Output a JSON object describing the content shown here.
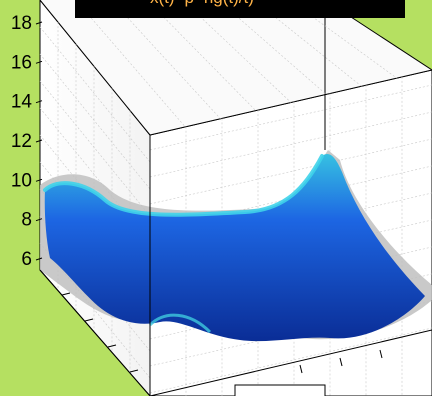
{
  "window": {
    "background_color": "#b5e061"
  },
  "title": {
    "text": "x(t)=p=ng(t)/t)"
  },
  "chart_data": {
    "type": "surface",
    "view": "3d-perspective",
    "z_axis": {
      "ticks": [
        6,
        8,
        10,
        12,
        14,
        16,
        18
      ]
    },
    "grid": true,
    "surface_colors": {
      "high": "#39c6e3",
      "mid": "#1a5fe0",
      "low": "#0b2f9b"
    },
    "axes_box_color": "#000000"
  }
}
